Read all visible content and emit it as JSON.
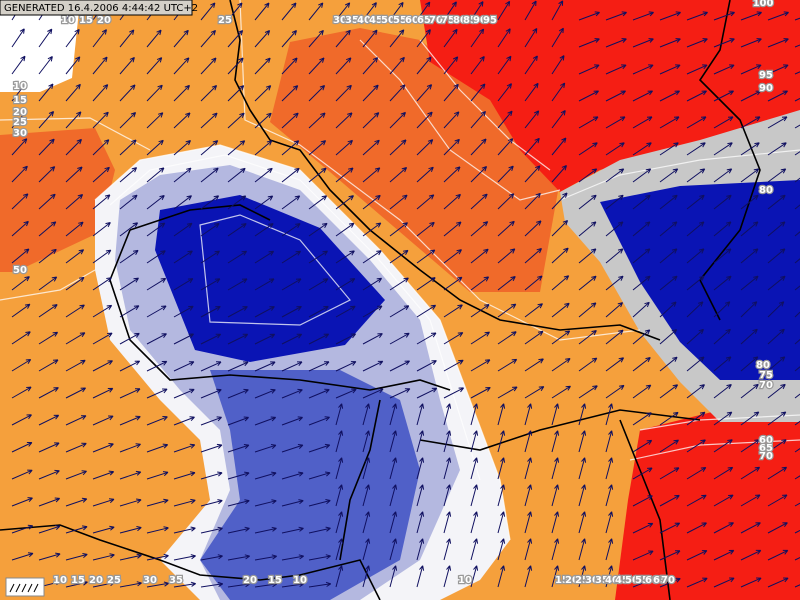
{
  "header": {
    "generated": "GENERATED 16.4.2006 4:44:42 UTC+2"
  },
  "contour_labels": [
    "10",
    "15",
    "20",
    "25",
    "30",
    "35",
    "40",
    "45",
    "50",
    "55",
    "60",
    "65",
    "70",
    "75",
    "80",
    "85",
    "90",
    "95",
    "100",
    "10",
    "15",
    "20",
    "25",
    "30",
    "50",
    "95",
    "90",
    "80",
    "80",
    "75",
    "70",
    "60",
    "65",
    "70",
    "10",
    "15",
    "20",
    "25",
    "30",
    "35",
    "20",
    "15",
    "10",
    "10",
    "15",
    "20",
    "25",
    "30",
    "35",
    "40",
    "45",
    "50",
    "55",
    "60",
    "65",
    "70"
  ]
}
